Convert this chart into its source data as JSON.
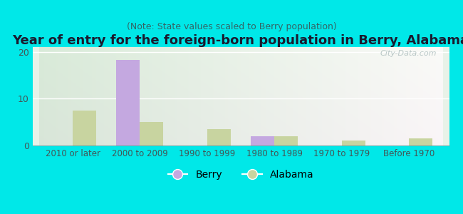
{
  "title": "Year of entry for the foreign-born population in Berry, Alabama",
  "subtitle": "(Note: State values scaled to Berry population)",
  "categories": [
    "2010 or later",
    "2000 to 2009",
    "1990 to 1999",
    "1980 to 1989",
    "1970 to 1979",
    "Before 1970"
  ],
  "berry_values": [
    0,
    18.2,
    0,
    2.0,
    0,
    0
  ],
  "alabama_values": [
    7.5,
    5.0,
    3.5,
    2.0,
    1.0,
    1.5
  ],
  "berry_color": "#c4a8e0",
  "alabama_color": "#c8d4a0",
  "background_outer": "#00e8e8",
  "ylim": [
    0,
    21
  ],
  "yticks": [
    0,
    10,
    20
  ],
  "bar_width": 0.35,
  "watermark": "City-Data.com",
  "title_fontsize": 13,
  "subtitle_fontsize": 9,
  "title_color": "#1a1a2e",
  "subtitle_color": "#336666"
}
